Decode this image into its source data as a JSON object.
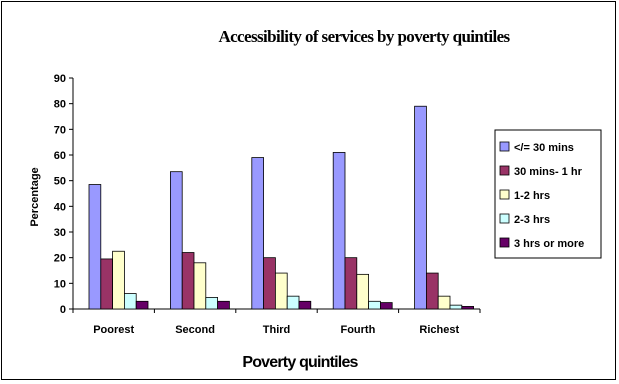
{
  "chart_data": {
    "type": "bar",
    "title": "Accessibility of services by poverty quintiles",
    "xlabel": "Poverty quintiles",
    "ylabel": "Percentage",
    "ylim": [
      0,
      90
    ],
    "yticks": [
      "0",
      "10",
      "20",
      "30",
      "40",
      "50",
      "60",
      "70",
      "80",
      "90"
    ],
    "categories": [
      "Poorest",
      "Second",
      "Third",
      "Fourth",
      "Richest"
    ],
    "series": [
      {
        "name": "</= 30 mins",
        "color": "#9999ff",
        "values": [
          48.5,
          53.5,
          59,
          61,
          79
        ]
      },
      {
        "name": "30 mins- 1 hr",
        "color": "#993366",
        "values": [
          19.5,
          22,
          20,
          20,
          14
        ]
      },
      {
        "name": "1-2 hrs",
        "color": "#ffffcc",
        "values": [
          22.5,
          18,
          14,
          13.5,
          5
        ]
      },
      {
        "name": "2-3 hrs",
        "color": "#ccffff",
        "values": [
          6,
          4.5,
          5,
          3,
          1.5
        ]
      },
      {
        "name": "3 hrs or more",
        "color": "#660066",
        "values": [
          3,
          3,
          3,
          2.5,
          1
        ]
      }
    ],
    "legend_position": "right",
    "grid": false
  }
}
